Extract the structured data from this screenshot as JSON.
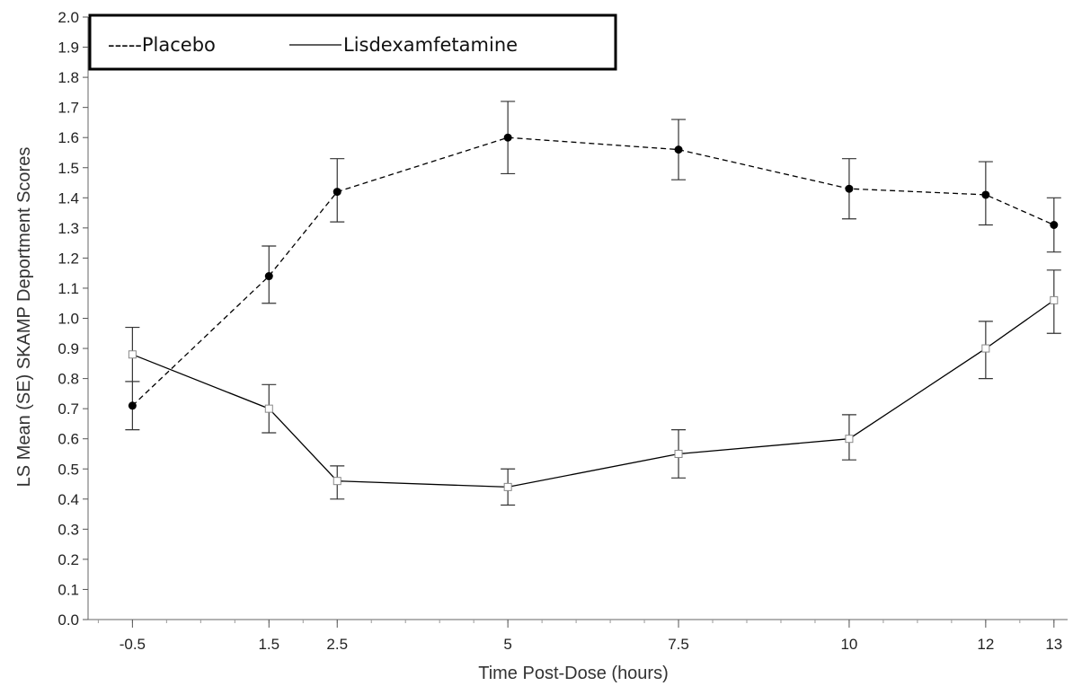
{
  "chart_data": {
    "type": "line",
    "title": "",
    "xlabel": "Time Post-Dose (hours)",
    "ylabel": "LS Mean (SE) SKAMP Deportment Scores",
    "x": [
      -0.5,
      1.5,
      2.5,
      5,
      7.5,
      10,
      12,
      13
    ],
    "x_tick_labels": [
      "-0.5",
      "1.5",
      "2.5",
      "5",
      "7.5",
      "10",
      "12",
      "13"
    ],
    "ylim": [
      0.0,
      2.0
    ],
    "y_ticks": [
      "0.0",
      "0.1",
      "0.2",
      "0.3",
      "0.4",
      "0.5",
      "0.6",
      "0.7",
      "0.8",
      "0.9",
      "1.0",
      "1.1",
      "1.2",
      "1.3",
      "1.4",
      "1.5",
      "1.6",
      "1.7",
      "1.8",
      "1.9",
      "2.0"
    ],
    "legend": {
      "placement": "top-left",
      "placebo_label": "-----Placebo",
      "lisdex_label": "Lisdexamfetamine"
    },
    "grid": false,
    "series": [
      {
        "name": "Placebo",
        "style": "dashed",
        "marker": "filled-circle",
        "color": "#000000",
        "values": [
          0.71,
          1.14,
          1.42,
          1.6,
          1.56,
          1.43,
          1.41,
          1.31
        ],
        "err_low": [
          0.63,
          1.05,
          1.32,
          1.48,
          1.46,
          1.33,
          1.31,
          1.22
        ],
        "err_high": [
          0.79,
          1.24,
          1.53,
          1.72,
          1.66,
          1.53,
          1.52,
          1.4
        ]
      },
      {
        "name": "Lisdexamfetamine",
        "style": "solid",
        "marker": "open-square",
        "color": "#000000",
        "values": [
          0.88,
          0.7,
          0.46,
          0.44,
          0.55,
          0.6,
          0.9,
          1.06
        ],
        "err_low": [
          0.79,
          0.62,
          0.4,
          0.38,
          0.47,
          0.53,
          0.8,
          0.95
        ],
        "err_high": [
          0.97,
          0.78,
          0.51,
          0.5,
          0.63,
          0.68,
          0.99,
          1.16
        ]
      }
    ]
  }
}
